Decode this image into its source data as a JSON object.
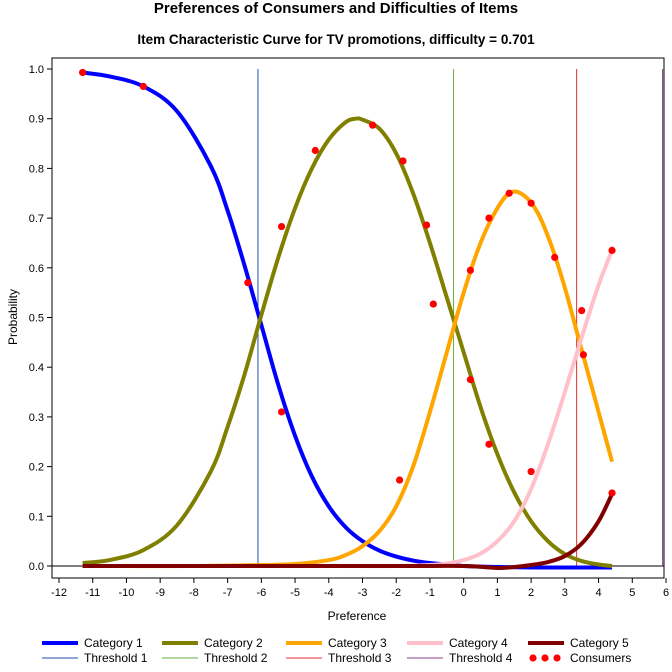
{
  "title": "Preferences of Consumers and Difficulties of Items",
  "subtitle": "Item Characteristic Curve for TV promotions, difficulty = 0.701",
  "chart_data": {
    "type": "line",
    "xlabel": "Preference",
    "ylabel": "Probability",
    "xlim": [
      -12,
      6
    ],
    "ylim": [
      0.0,
      1.0
    ],
    "x_ticks": [
      -12,
      -11,
      -10,
      -9,
      -8,
      -7,
      -6,
      -5,
      -4,
      -3,
      -2,
      -1,
      0,
      1,
      2,
      3,
      4,
      5,
      6
    ],
    "y_ticks": [
      0.0,
      0.1,
      0.2,
      0.3,
      0.4,
      0.5,
      0.6,
      0.7,
      0.8,
      0.9,
      1.0
    ],
    "y_tick_labels": [
      "0.0",
      "0.1",
      "0.2",
      "0.3",
      "0.4",
      "0.5",
      "0.6",
      "0.7",
      "0.8",
      "0.9",
      "1.0"
    ],
    "grid": false,
    "legend_position": "bottom",
    "x_range_curves": [
      -11.3,
      4.4
    ],
    "series": [
      {
        "name": "Category 1",
        "color": "#0000FF",
        "x": [
          -11.3,
          -10.5,
          -9.5,
          -8.5,
          -7.5,
          -7.0,
          -6.5,
          -6.0,
          -5.5,
          -5.0,
          -4.5,
          -4.0,
          -3.5,
          -3.0,
          -2.5,
          -2.0,
          -1.5,
          -1.0,
          -0.5,
          0.0,
          1.0,
          2.0,
          3.0,
          4.4
        ],
        "values": [
          0.993,
          0.985,
          0.965,
          0.915,
          0.805,
          0.715,
          0.605,
          0.485,
          0.365,
          0.262,
          0.18,
          0.12,
          0.078,
          0.05,
          0.031,
          0.019,
          0.011,
          0.006,
          0.003,
          0.0,
          -0.002,
          -0.003,
          -0.003,
          -0.003
        ]
      },
      {
        "name": "Category 2",
        "color": "#808000",
        "x": [
          -11.3,
          -10.5,
          -9.5,
          -8.5,
          -7.5,
          -7.0,
          -6.5,
          -6.0,
          -5.5,
          -5.0,
          -4.5,
          -4.0,
          -3.5,
          -3.2,
          -3.0,
          -2.5,
          -2.0,
          -1.5,
          -1.0,
          -0.5,
          0.0,
          0.5,
          1.0,
          1.5,
          2.0,
          2.5,
          3.0,
          3.5,
          4.0,
          4.4
        ],
        "values": [
          0.006,
          0.012,
          0.032,
          0.082,
          0.19,
          0.28,
          0.385,
          0.505,
          0.62,
          0.72,
          0.8,
          0.858,
          0.893,
          0.9,
          0.898,
          0.88,
          0.83,
          0.75,
          0.65,
          0.54,
          0.43,
          0.32,
          0.225,
          0.148,
          0.09,
          0.05,
          0.024,
          0.01,
          0.003,
          0.0
        ]
      },
      {
        "name": "Category 3",
        "color": "#FFA500",
        "x": [
          -11.3,
          -8.0,
          -6.0,
          -5.0,
          -4.0,
          -3.5,
          -3.0,
          -2.5,
          -2.0,
          -1.5,
          -1.0,
          -0.5,
          0.0,
          0.5,
          1.0,
          1.4,
          1.8,
          2.2,
          2.6,
          3.0,
          3.4,
          3.8,
          4.1,
          4.4
        ],
        "values": [
          0.0,
          0.0,
          0.002,
          0.004,
          0.012,
          0.022,
          0.04,
          0.07,
          0.12,
          0.2,
          0.31,
          0.43,
          0.55,
          0.65,
          0.72,
          0.752,
          0.745,
          0.71,
          0.645,
          0.56,
          0.46,
          0.36,
          0.285,
          0.21
        ]
      },
      {
        "name": "Category 4",
        "color": "#FFC0CB",
        "x": [
          -11.3,
          -4.0,
          -2.0,
          -1.0,
          -0.5,
          0.0,
          0.5,
          1.0,
          1.5,
          2.0,
          2.5,
          3.0,
          3.5,
          4.0,
          4.4
        ],
        "values": [
          0.0,
          0.0,
          0.0,
          0.002,
          0.005,
          0.012,
          0.025,
          0.05,
          0.09,
          0.155,
          0.245,
          0.35,
          0.46,
          0.565,
          0.635
        ]
      },
      {
        "name": "Category 5",
        "color": "#800000",
        "x": [
          -11.3,
          -2.0,
          0.0,
          1.0,
          1.5,
          2.0,
          2.5,
          3.0,
          3.5,
          4.0,
          4.4
        ],
        "values": [
          0.0,
          0.0,
          0.0,
          -0.004,
          -0.002,
          0.002,
          0.008,
          0.02,
          0.045,
          0.09,
          0.145
        ]
      }
    ],
    "thresholds": [
      {
        "name": "Threshold 1",
        "x": -6.1,
        "color": "#1F4FAF"
      },
      {
        "name": "Threshold 2",
        "x": -0.3,
        "color": "#6BAF3F"
      },
      {
        "name": "Threshold 3",
        "x": 3.35,
        "color": "#E03030"
      },
      {
        "name": "Threshold 4",
        "x": 5.9,
        "color": "#8A3D8F"
      }
    ],
    "consumers": {
      "name": "Consumers",
      "color": "#FF0000",
      "points": [
        [
          -11.3,
          0.993
        ],
        [
          -9.5,
          0.965
        ],
        [
          -6.4,
          0.57
        ],
        [
          -5.4,
          0.683
        ],
        [
          -5.4,
          0.31
        ],
        [
          -4.4,
          0.836
        ],
        [
          -2.7,
          0.887
        ],
        [
          -1.8,
          0.815
        ],
        [
          -1.1,
          0.686
        ],
        [
          -0.9,
          0.527
        ],
        [
          -1.9,
          0.173
        ],
        [
          0.2,
          0.595
        ],
        [
          0.2,
          0.375
        ],
        [
          0.75,
          0.7
        ],
        [
          0.75,
          0.245
        ],
        [
          1.35,
          0.75
        ],
        [
          2.0,
          0.73
        ],
        [
          2.0,
          0.19
        ],
        [
          2.7,
          0.621
        ],
        [
          3.5,
          0.514
        ],
        [
          3.55,
          0.425
        ],
        [
          4.4,
          0.635
        ],
        [
          4.4,
          0.147
        ]
      ]
    }
  }
}
